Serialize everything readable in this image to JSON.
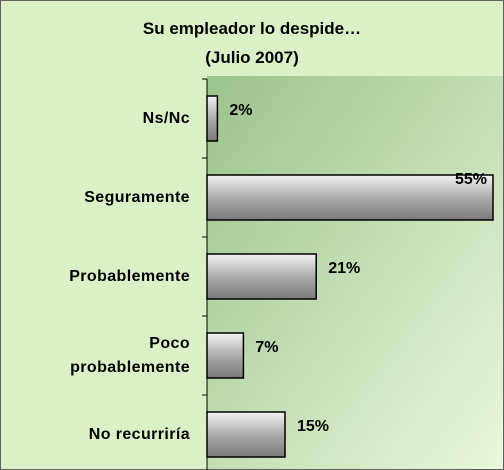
{
  "chart_data": {
    "type": "bar",
    "orientation": "horizontal",
    "title": "Su empleador lo despide…\n(Julio 2007)",
    "categories": [
      "Ns/Nc",
      "Seguramente",
      "Probablemente",
      "Poco\nprobablemente",
      "No recurriría"
    ],
    "values": [
      2,
      55,
      21,
      7,
      15
    ],
    "value_labels": [
      "2%",
      "55%",
      "21%",
      "7%",
      "15%"
    ],
    "color": "#a6a6a6"
  }
}
